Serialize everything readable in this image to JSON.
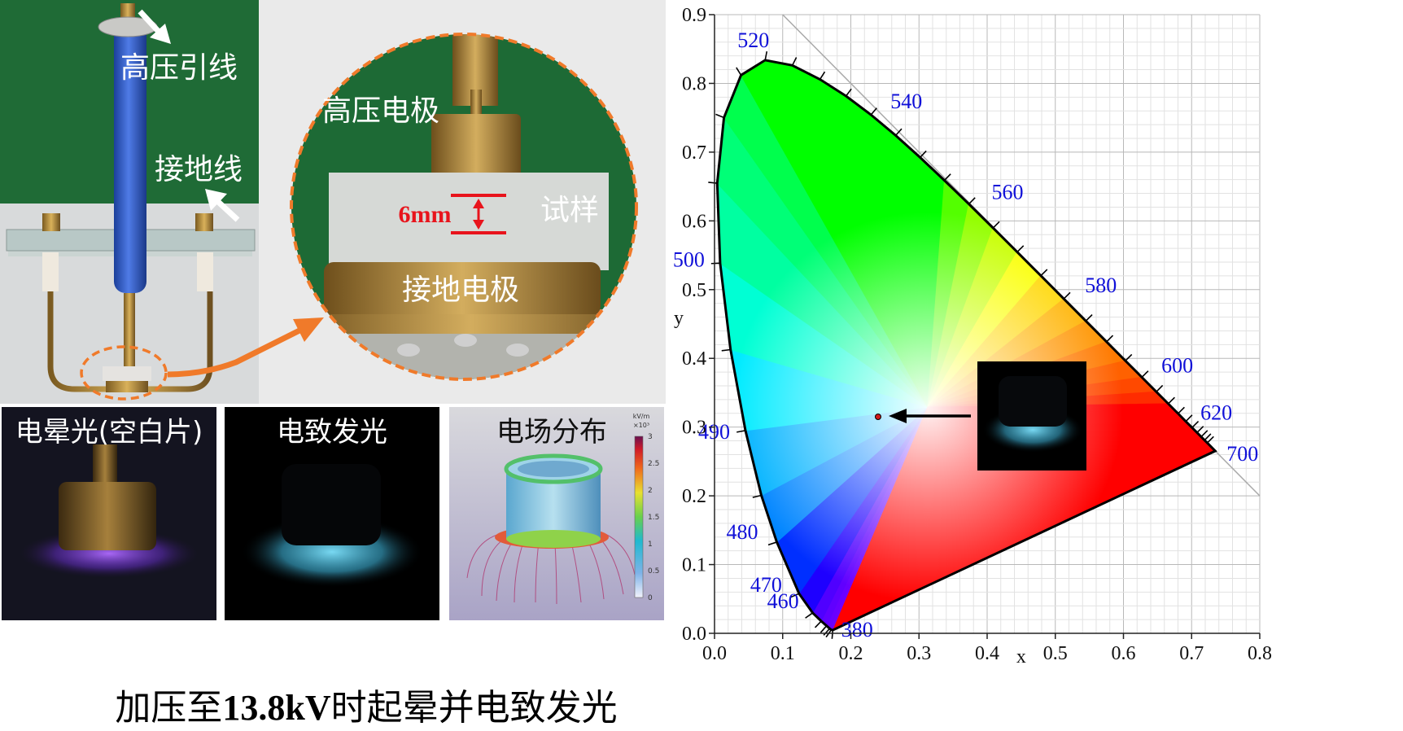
{
  "photo_setup": {
    "hv_lead_label": "高压引线",
    "ground_wire_label": "接地线"
  },
  "zoom_view": {
    "hv_electrode_label": "高压电极",
    "gap_label": "6mm",
    "sample_label": "试样",
    "ground_electrode_label": "接地电极"
  },
  "panels": {
    "corona_title": "电晕光(空白片)",
    "el_title": "电致发光",
    "field_title": "电场分布"
  },
  "colorbar": {
    "unit": "kV/m",
    "scale": "×10³",
    "ticks": [
      "3",
      "2.5",
      "2",
      "1.5",
      "1",
      "0.5",
      "0"
    ]
  },
  "caption": {
    "prefix": "加压至",
    "voltage": "13.8kV",
    "suffix": "时起晕并电致发光"
  },
  "chart_data": {
    "type": "scatter",
    "xlabel": "x",
    "ylabel": "y",
    "xlim": [
      0.0,
      0.8
    ],
    "ylim": [
      0.0,
      0.9
    ],
    "xticks": [
      "0.0",
      "0.1",
      "0.2",
      "0.3",
      "0.4",
      "0.5",
      "0.6",
      "0.7",
      "0.8"
    ],
    "yticks": [
      "0.0",
      "0.1",
      "0.2",
      "0.3",
      "0.4",
      "0.5",
      "0.6",
      "0.7",
      "0.8",
      "0.9"
    ],
    "grid": true,
    "locus": [
      [
        0.1741,
        0.005
      ],
      [
        0.1736,
        0.0049
      ],
      [
        0.1714,
        0.0051
      ],
      [
        0.1689,
        0.0069
      ],
      [
        0.1644,
        0.0109
      ],
      [
        0.1566,
        0.0177
      ],
      [
        0.144,
        0.0297
      ],
      [
        0.1241,
        0.0578
      ],
      [
        0.0913,
        0.1327
      ],
      [
        0.0687,
        0.2007
      ],
      [
        0.0454,
        0.295
      ],
      [
        0.0235,
        0.4127
      ],
      [
        0.0082,
        0.5384
      ],
      [
        0.0039,
        0.6548
      ],
      [
        0.0139,
        0.7502
      ],
      [
        0.0389,
        0.812
      ],
      [
        0.0743,
        0.8338
      ],
      [
        0.1142,
        0.8262
      ],
      [
        0.1547,
        0.8059
      ],
      [
        0.1929,
        0.7816
      ],
      [
        0.2296,
        0.7543
      ],
      [
        0.2658,
        0.7243
      ],
      [
        0.3016,
        0.6923
      ],
      [
        0.3373,
        0.6589
      ],
      [
        0.3731,
        0.6245
      ],
      [
        0.4087,
        0.5896
      ],
      [
        0.4441,
        0.5547
      ],
      [
        0.4788,
        0.5202
      ],
      [
        0.5125,
        0.4866
      ],
      [
        0.5448,
        0.4544
      ],
      [
        0.5752,
        0.4242
      ],
      [
        0.6029,
        0.3965
      ],
      [
        0.627,
        0.3725
      ],
      [
        0.6482,
        0.3514
      ],
      [
        0.6658,
        0.334
      ],
      [
        0.6801,
        0.3197
      ],
      [
        0.6915,
        0.3083
      ],
      [
        0.7006,
        0.2993
      ],
      [
        0.7079,
        0.292
      ],
      [
        0.714,
        0.2859
      ],
      [
        0.719,
        0.2809
      ],
      [
        0.723,
        0.277
      ],
      [
        0.726,
        0.274
      ],
      [
        0.7347,
        0.2653
      ]
    ],
    "wavelength_labels": [
      {
        "nm": "380",
        "x": 0.1741,
        "y": 0.005
      },
      {
        "nm": "460",
        "x": 0.144,
        "y": 0.0297
      },
      {
        "nm": "470",
        "x": 0.1241,
        "y": 0.0578
      },
      {
        "nm": "480",
        "x": 0.0913,
        "y": 0.1327
      },
      {
        "nm": "490",
        "x": 0.0454,
        "y": 0.295
      },
      {
        "nm": "500",
        "x": 0.0082,
        "y": 0.5384
      },
      {
        "nm": "520",
        "x": 0.0743,
        "y": 0.8338
      },
      {
        "nm": "540",
        "x": 0.2296,
        "y": 0.7543
      },
      {
        "nm": "560",
        "x": 0.3731,
        "y": 0.6245
      },
      {
        "nm": "580",
        "x": 0.5125,
        "y": 0.4866
      },
      {
        "nm": "600",
        "x": 0.627,
        "y": 0.3725
      },
      {
        "nm": "620",
        "x": 0.6915,
        "y": 0.3083
      },
      {
        "nm": "700",
        "x": 0.7347,
        "y": 0.2653
      }
    ],
    "points": [
      {
        "x": 0.24,
        "y": 0.315
      }
    ]
  },
  "colors": {
    "arrow_orange": "#f07a2a",
    "gap_red": "#e8141c",
    "wavelength_blue": "#1010d8",
    "green_backdrop": "#1d6a35"
  }
}
